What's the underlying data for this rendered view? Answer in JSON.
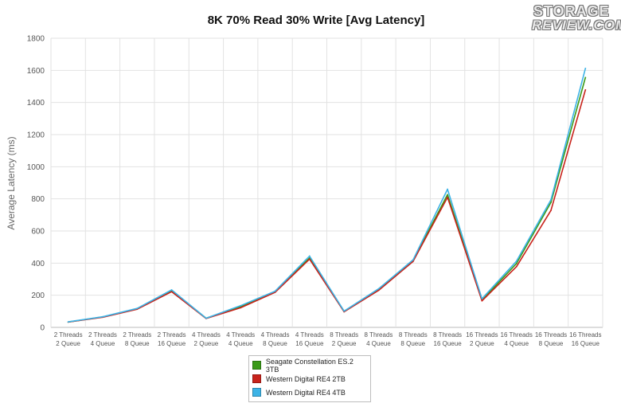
{
  "chart_data": {
    "type": "line",
    "title": "8K 70% Read 30% Write [Avg Latency]",
    "ylabel": "Average Latency (ms)",
    "xlabel": "",
    "ylim": [
      0,
      1800
    ],
    "yticks": [
      0,
      200,
      400,
      600,
      800,
      1000,
      1200,
      1400,
      1600,
      1800
    ],
    "grid": true,
    "legend_position": "bottom-center",
    "categories": [
      [
        "2 Threads",
        "2 Queue"
      ],
      [
        "2 Threads",
        "4 Queue"
      ],
      [
        "2 Threads",
        "8 Queue"
      ],
      [
        "2 Threads",
        "16 Queue"
      ],
      [
        "4 Threads",
        "2 Queue"
      ],
      [
        "4 Threads",
        "4 Queue"
      ],
      [
        "4 Threads",
        "8 Queue"
      ],
      [
        "4 Threads",
        "16 Queue"
      ],
      [
        "8 Threads",
        "2 Queue"
      ],
      [
        "8 Threads",
        "4 Queue"
      ],
      [
        "8 Threads",
        "8 Queue"
      ],
      [
        "8 Threads",
        "16 Queue"
      ],
      [
        "16 Threads",
        "2 Queue"
      ],
      [
        "16 Threads",
        "4 Queue"
      ],
      [
        "16 Threads",
        "8 Queue"
      ],
      [
        "16 Threads",
        "16 Queue"
      ]
    ],
    "series": [
      {
        "name": "Seagate Constellation ES.2 3TB",
        "color": "#3a9a18",
        "values": [
          33,
          65,
          116,
          228,
          57,
          129,
          223,
          432,
          99,
          236,
          416,
          826,
          170,
          397,
          778,
          1555
        ]
      },
      {
        "name": "Western Digital RE4 2TB",
        "color": "#c8231b",
        "values": [
          33,
          63,
          113,
          222,
          55,
          122,
          218,
          425,
          97,
          230,
          410,
          810,
          165,
          378,
          728,
          1478
        ]
      },
      {
        "name": "Western Digital RE4 4TB",
        "color": "#3db3e6",
        "values": [
          34,
          66,
          118,
          233,
          57,
          135,
          225,
          444,
          101,
          240,
          420,
          860,
          178,
          412,
          794,
          1612
        ]
      }
    ]
  },
  "logo": {
    "line1": "STORAGE",
    "line2": "REVIEW.COM"
  }
}
